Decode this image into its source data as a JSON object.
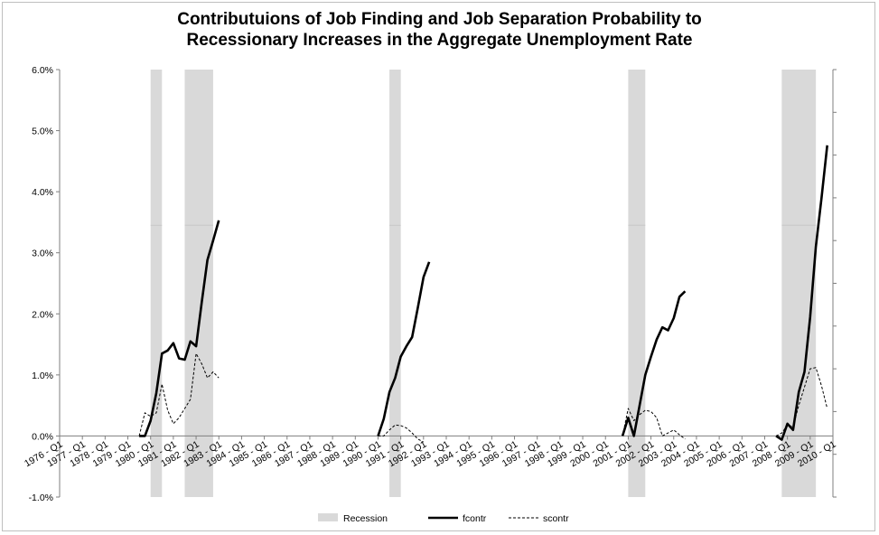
{
  "chart_data": {
    "type": "line",
    "title_line1": "Contributuions of Job Finding and Job Separation Probability to",
    "title_line2": "Recessionary Increases in the Aggregate Unemployment Rate",
    "y_ticks": [
      "6.0%",
      "5.0%",
      "4.0%",
      "3.0%",
      "2.0%",
      "1.0%",
      "0.0%",
      "-1.0%"
    ],
    "ylim": [
      -1.0,
      6.0
    ],
    "x_ticks": [
      "1976 - Q1",
      "1977 - Q1",
      "1978 - Q1",
      "1979 - Q1",
      "1980 - Q1",
      "1981 - Q1",
      "1982 - Q1",
      "1983 - Q1",
      "1984 - Q1",
      "1985 - Q1",
      "1986 - Q1",
      "1987 - Q1",
      "1988 - Q1",
      "1989 - Q1",
      "1990 - Q1",
      "1991 - Q1",
      "1992 - Q1",
      "1993 - Q1",
      "1994 - Q1",
      "1995 - Q1",
      "1996 - Q1",
      "1997 - Q1",
      "1998 - Q1",
      "1999 - Q1",
      "2000 - Q1",
      "2001 - Q1",
      "2002 - Q1",
      "2003 - Q1",
      "2004 - Q1",
      "2005 - Q1",
      "2006 - Q1",
      "2007 - Q1",
      "2008 - Q1",
      "2009 - Q1",
      "2010 - Q1"
    ],
    "x_start_year": 1976,
    "recessions": [
      [
        1980.0,
        1980.5
      ],
      [
        1981.5,
        1982.75
      ],
      [
        1990.5,
        1991.0
      ],
      [
        2001.0,
        2001.75
      ],
      [
        2007.75,
        2009.25
      ]
    ],
    "recession_level": 3.45,
    "grid": false,
    "legend_position": "bottom",
    "series": [
      {
        "name": "Recession",
        "style": "area",
        "color": "#d9d9d9"
      },
      {
        "name": "fcontr",
        "style": "solid",
        "color": "#000000",
        "segments": [
          [
            [
              1979.5,
              0.0
            ],
            [
              1979.75,
              0.0
            ],
            [
              1980.0,
              0.25
            ],
            [
              1980.25,
              0.7
            ],
            [
              1980.5,
              1.35
            ],
            [
              1980.75,
              1.4
            ],
            [
              1981.0,
              1.52
            ],
            [
              1981.25,
              1.27
            ],
            [
              1981.5,
              1.25
            ],
            [
              1981.75,
              1.55
            ],
            [
              1982.0,
              1.47
            ],
            [
              1982.25,
              2.2
            ],
            [
              1982.5,
              2.88
            ],
            [
              1982.75,
              3.2
            ],
            [
              1983.0,
              3.53
            ]
          ],
          [
            [
              1990.0,
              0.0
            ],
            [
              1990.25,
              0.28
            ],
            [
              1990.5,
              0.72
            ],
            [
              1990.75,
              0.95
            ],
            [
              1991.0,
              1.3
            ],
            [
              1991.25,
              1.47
            ],
            [
              1991.5,
              1.62
            ],
            [
              1991.75,
              2.1
            ],
            [
              1992.0,
              2.6
            ],
            [
              1992.25,
              2.85
            ]
          ],
          [
            [
              2000.75,
              0.0
            ],
            [
              2001.0,
              0.3
            ],
            [
              2001.25,
              0.0
            ],
            [
              2001.5,
              0.5
            ],
            [
              2001.75,
              1.0
            ],
            [
              2002.0,
              1.3
            ],
            [
              2002.25,
              1.58
            ],
            [
              2002.5,
              1.78
            ],
            [
              2002.75,
              1.73
            ],
            [
              2003.0,
              1.93
            ],
            [
              2003.25,
              2.28
            ],
            [
              2003.5,
              2.37
            ]
          ],
          [
            [
              2007.5,
              0.0
            ],
            [
              2007.75,
              -0.06
            ],
            [
              2008.0,
              0.2
            ],
            [
              2008.25,
              0.1
            ],
            [
              2008.5,
              0.72
            ],
            [
              2008.75,
              1.05
            ],
            [
              2009.0,
              1.95
            ],
            [
              2009.25,
              3.1
            ],
            [
              2009.5,
              3.9
            ],
            [
              2009.75,
              4.76
            ]
          ]
        ]
      },
      {
        "name": "scontr",
        "style": "dashed",
        "color": "#000000",
        "segments": [
          [
            [
              1979.5,
              0.0
            ],
            [
              1979.75,
              0.38
            ],
            [
              1980.0,
              0.32
            ],
            [
              1980.25,
              0.38
            ],
            [
              1980.5,
              0.85
            ],
            [
              1980.75,
              0.42
            ],
            [
              1981.0,
              0.2
            ],
            [
              1981.25,
              0.3
            ],
            [
              1981.5,
              0.45
            ],
            [
              1981.75,
              0.6
            ],
            [
              1982.0,
              1.35
            ],
            [
              1982.25,
              1.18
            ],
            [
              1982.5,
              0.95
            ],
            [
              1982.75,
              1.05
            ],
            [
              1983.0,
              0.95
            ]
          ],
          [
            [
              1990.0,
              0.0
            ],
            [
              1990.25,
              0.0
            ],
            [
              1990.5,
              0.1
            ],
            [
              1990.75,
              0.18
            ],
            [
              1991.0,
              0.17
            ],
            [
              1991.25,
              0.13
            ],
            [
              1991.5,
              0.05
            ],
            [
              1991.75,
              -0.05
            ],
            [
              1992.0,
              -0.1
            ]
          ],
          [
            [
              2000.75,
              0.0
            ],
            [
              2001.0,
              0.45
            ],
            [
              2001.25,
              0.25
            ],
            [
              2001.5,
              0.35
            ],
            [
              2001.75,
              0.42
            ],
            [
              2002.0,
              0.4
            ],
            [
              2002.25,
              0.3
            ],
            [
              2002.5,
              0.0
            ],
            [
              2002.75,
              0.05
            ],
            [
              2003.0,
              0.1
            ],
            [
              2003.25,
              0.02
            ],
            [
              2003.5,
              -0.05
            ]
          ],
          [
            [
              2007.5,
              0.0
            ],
            [
              2007.75,
              0.05
            ],
            [
              2008.0,
              0.18
            ],
            [
              2008.25,
              0.15
            ],
            [
              2008.5,
              0.5
            ],
            [
              2008.75,
              0.8
            ],
            [
              2009.0,
              1.1
            ],
            [
              2009.25,
              1.12
            ],
            [
              2009.5,
              0.82
            ],
            [
              2009.75,
              0.45
            ]
          ]
        ]
      }
    ]
  }
}
